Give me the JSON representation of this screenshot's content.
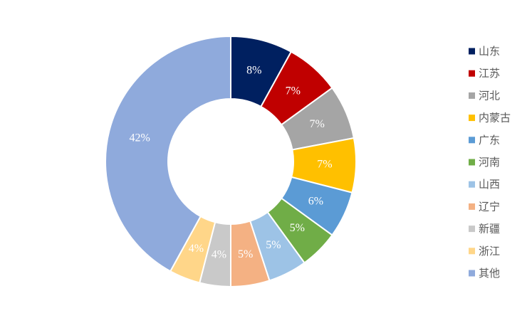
{
  "chart_data": {
    "type": "pie",
    "donut": true,
    "title": "",
    "legend_position": "right",
    "slices": [
      {
        "label": "山东",
        "value": 8,
        "display": "8%",
        "color": "#002060",
        "label_color": "#ffffff"
      },
      {
        "label": "江苏",
        "value": 7,
        "display": "7%",
        "color": "#c00000",
        "label_color": "#ffffff"
      },
      {
        "label": "河北",
        "value": 7,
        "display": "7%",
        "color": "#a5a5a5",
        "label_color": "#ffffff"
      },
      {
        "label": "内蒙古",
        "value": 7,
        "display": "7%",
        "color": "#ffc000",
        "label_color": "#ffffff"
      },
      {
        "label": "广东",
        "value": 6,
        "display": "6%",
        "color": "#5b9bd5",
        "label_color": "#ffffff"
      },
      {
        "label": "河南",
        "value": 5,
        "display": "5%",
        "color": "#70ad47",
        "label_color": "#ffffff"
      },
      {
        "label": "山西",
        "value": 5,
        "display": "5%",
        "color": "#9dc3e6",
        "label_color": "#ffffff"
      },
      {
        "label": "辽宁",
        "value": 5,
        "display": "5%",
        "color": "#f4b183",
        "label_color": "#ffffff"
      },
      {
        "label": "新疆",
        "value": 4,
        "display": "4%",
        "color": "#c9c9c9",
        "label_color": "#ffffff"
      },
      {
        "label": "浙江",
        "value": 4,
        "display": "4%",
        "color": "#ffd689",
        "label_color": "#ffffff"
      },
      {
        "label": "其他",
        "value": 42,
        "display": "42%",
        "color": "#8faadc",
        "label_color": "#ffffff"
      }
    ]
  }
}
